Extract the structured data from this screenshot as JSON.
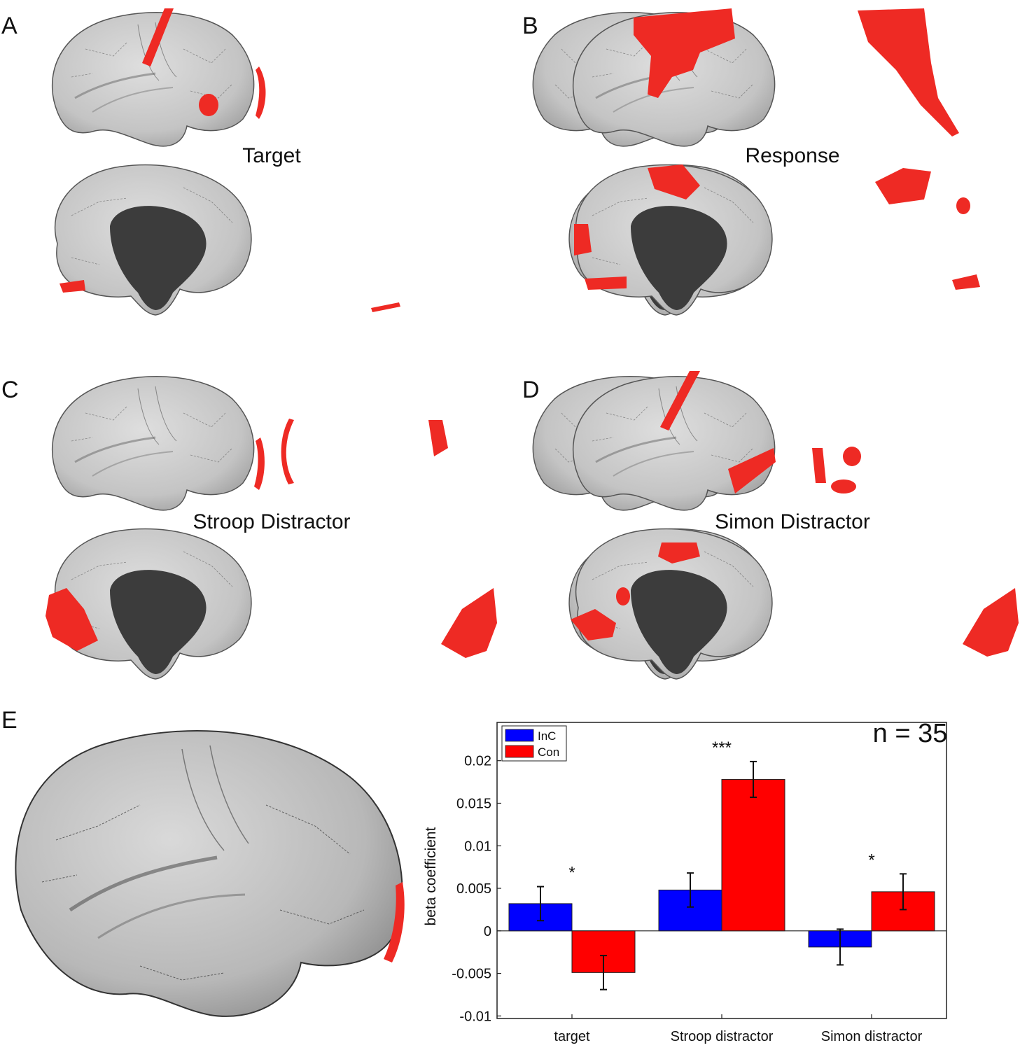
{
  "panels": {
    "A": {
      "letter": "A",
      "title": "Target"
    },
    "B": {
      "letter": "B",
      "title": "Response"
    },
    "C": {
      "letter": "C",
      "title": "Stroop Distractor"
    },
    "D": {
      "letter": "D",
      "title": "Simon Distractor"
    },
    "E": {
      "letter": "E"
    }
  },
  "colors": {
    "cortex": "#c9c9c9",
    "medial_wall": "#3c3c3c",
    "highlight": "#ee2a24",
    "inc": "#0000ff",
    "con": "#ff0000"
  },
  "chart_data": {
    "type": "bar",
    "categories": [
      "target",
      "Stroop distractor",
      "Simon distractor"
    ],
    "series": [
      {
        "name": "InC",
        "color": "#0000ff",
        "values": [
          0.0032,
          0.0048,
          -0.0019
        ],
        "errors": [
          0.002,
          0.002,
          0.0021
        ]
      },
      {
        "name": "Con",
        "color": "#ff0000",
        "values": [
          -0.0049,
          0.0178,
          0.0046
        ],
        "errors": [
          0.002,
          0.0021,
          0.0021
        ]
      }
    ],
    "significance": [
      "*",
      "***",
      "*"
    ],
    "annotation": "n = 35",
    "ylabel": "beta coefficient",
    "xlabel": "",
    "ylim": [
      -0.0103,
      0.0245
    ],
    "yticks": [
      -0.01,
      -0.005,
      0,
      0.005,
      0.01,
      0.015,
      0.02
    ],
    "ytick_labels": [
      "-0.01",
      "-0.005",
      "0",
      "0.005",
      "0.01",
      "0.015",
      "0.02"
    ],
    "legend_position": "top-left"
  }
}
